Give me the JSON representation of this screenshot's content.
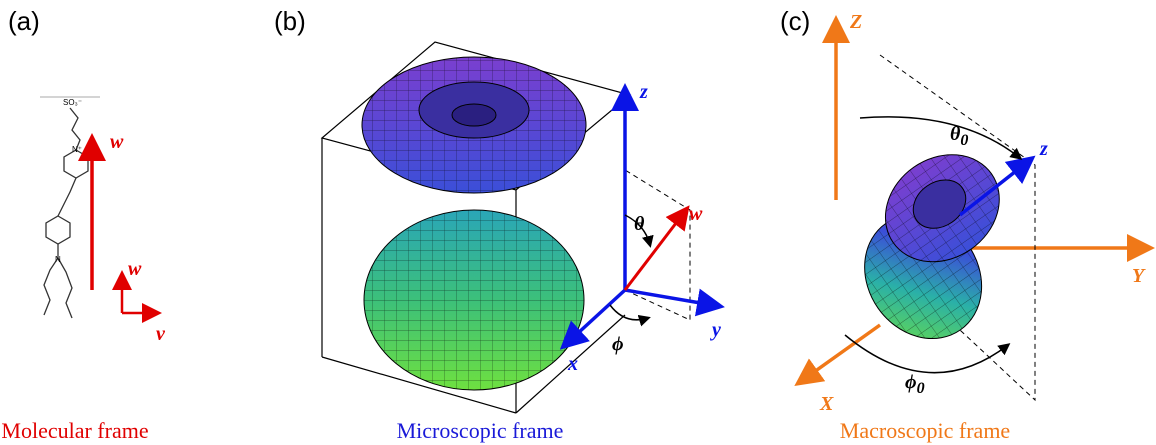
{
  "panels": [
    {
      "label": "(a)",
      "caption": "Molecular frame",
      "atom_labels": [
        "SO₃⁻",
        "N⁺",
        "N"
      ],
      "axis_labels": [
        "w",
        "w",
        "v"
      ]
    },
    {
      "label": "(b)",
      "caption": "Microscopic frame",
      "axis_labels": [
        "z",
        "w",
        "θ",
        "y",
        "x",
        "ϕ"
      ]
    },
    {
      "label": "(c)",
      "caption": "Macroscopic frame",
      "axis_labels": [
        "Z",
        "z",
        "Y",
        "X"
      ],
      "angles": [
        {
          "symbol": "θ",
          "subscript": "0"
        },
        {
          "symbol": "ϕ",
          "subscript": "0"
        }
      ]
    }
  ]
}
